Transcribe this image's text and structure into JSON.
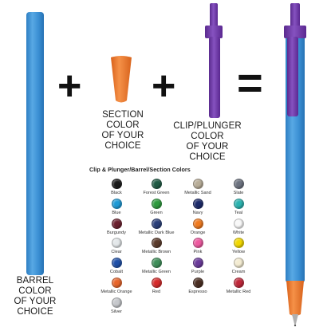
{
  "captions": {
    "barrel": [
      "BARREL",
      "COLOR",
      "OF YOUR",
      "CHOICE"
    ],
    "section": [
      "SECTION",
      "COLOR",
      "OF YOUR",
      "CHOICE"
    ],
    "clip": [
      "CLIP/PLUNGER",
      "COLOR",
      "OF YOUR",
      "CHOICE"
    ]
  },
  "operators": {
    "plus": "+",
    "equals": "="
  },
  "swatches": {
    "title": "Clip & Plunger/Barrel/Section Colors",
    "items": [
      {
        "name": "Black",
        "color": "#1a1a1a"
      },
      {
        "name": "Forest Green",
        "color": "#1f5a44"
      },
      {
        "name": "Metallic Sand",
        "color": "#b8ad98"
      },
      {
        "name": "Slate",
        "color": "#6d7380"
      },
      {
        "name": "Blue",
        "color": "#1e9ad6"
      },
      {
        "name": "Green",
        "color": "#2e9b3e"
      },
      {
        "name": "Navy",
        "color": "#1c2a6a"
      },
      {
        "name": "Teal",
        "color": "#2bb3b0"
      },
      {
        "name": "Burgundy",
        "color": "#6b1f2d"
      },
      {
        "name": "Metallic Dark Blue",
        "color": "#2a3f7a"
      },
      {
        "name": "Orange",
        "color": "#f07a1f"
      },
      {
        "name": "White",
        "color": "#f8f8f8"
      },
      {
        "name": "Clear",
        "color": "#e4e8ea"
      },
      {
        "name": "Metallic Brown",
        "color": "#5a3a2a"
      },
      {
        "name": "Pink",
        "color": "#ee5aa0"
      },
      {
        "name": "Yellow",
        "color": "#f2d800"
      },
      {
        "name": "Cobalt",
        "color": "#1e4fa8"
      },
      {
        "name": "Metallic Green",
        "color": "#3f8f5a"
      },
      {
        "name": "Purple",
        "color": "#6a3a9a"
      },
      {
        "name": "Cream",
        "color": "#f4ecd2"
      },
      {
        "name": "Metallic Orange",
        "color": "#e8652a"
      },
      {
        "name": "Red",
        "color": "#d62a2a"
      },
      {
        "name": "Espresso",
        "color": "#4a2e22"
      },
      {
        "name": "Metallic Red",
        "color": "#c0283a"
      },
      {
        "name": "Silver",
        "color": "#c6c8cc"
      }
    ]
  },
  "colors": {
    "barrel": "#3f92d4",
    "section": "#f07a28",
    "clip": "#6a32a0"
  }
}
